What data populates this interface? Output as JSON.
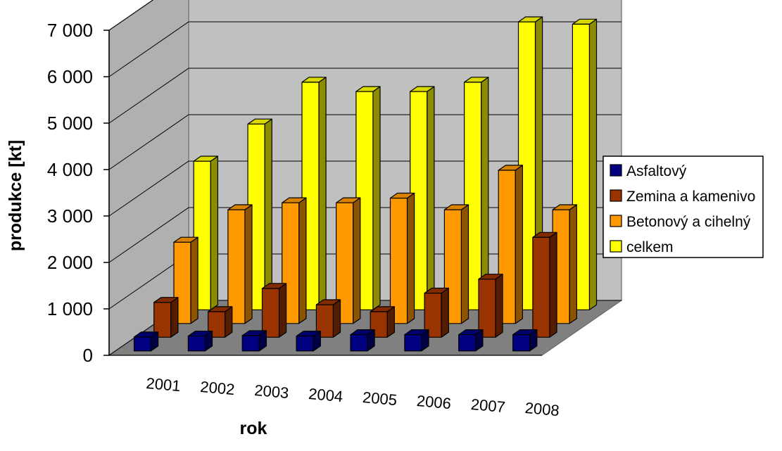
{
  "chart_data": {
    "type": "bar",
    "title": "",
    "xlabel": "rok",
    "ylabel": "produkce [kt]",
    "categories": [
      "2001",
      "2002",
      "2003",
      "2004",
      "2005",
      "2006",
      "2007",
      "2008"
    ],
    "y_ticks": [
      "0",
      "1 000",
      "2 000",
      "3 000",
      "4 000",
      "5 000",
      "6 000",
      "7 000"
    ],
    "ylim": [
      0,
      7000
    ],
    "grid": true,
    "legend_position": "right",
    "series": [
      {
        "name": "Asfaltový",
        "color": "#000080",
        "values": [
          300,
          320,
          330,
          320,
          350,
          350,
          350,
          350
        ]
      },
      {
        "name": "Zemina a kamenivo",
        "color": "#993300",
        "values": [
          750,
          550,
          1050,
          700,
          550,
          950,
          1250,
          2150
        ]
      },
      {
        "name": "Betonový a cihelný",
        "color": "#FF9900",
        "values": [
          1750,
          2450,
          2600,
          2600,
          2700,
          2450,
          3300,
          2450
        ]
      },
      {
        "name": "celkem",
        "color": "#FFFF00",
        "values": [
          3200,
          4000,
          4900,
          4700,
          4700,
          4900,
          6200,
          6150
        ]
      }
    ]
  }
}
